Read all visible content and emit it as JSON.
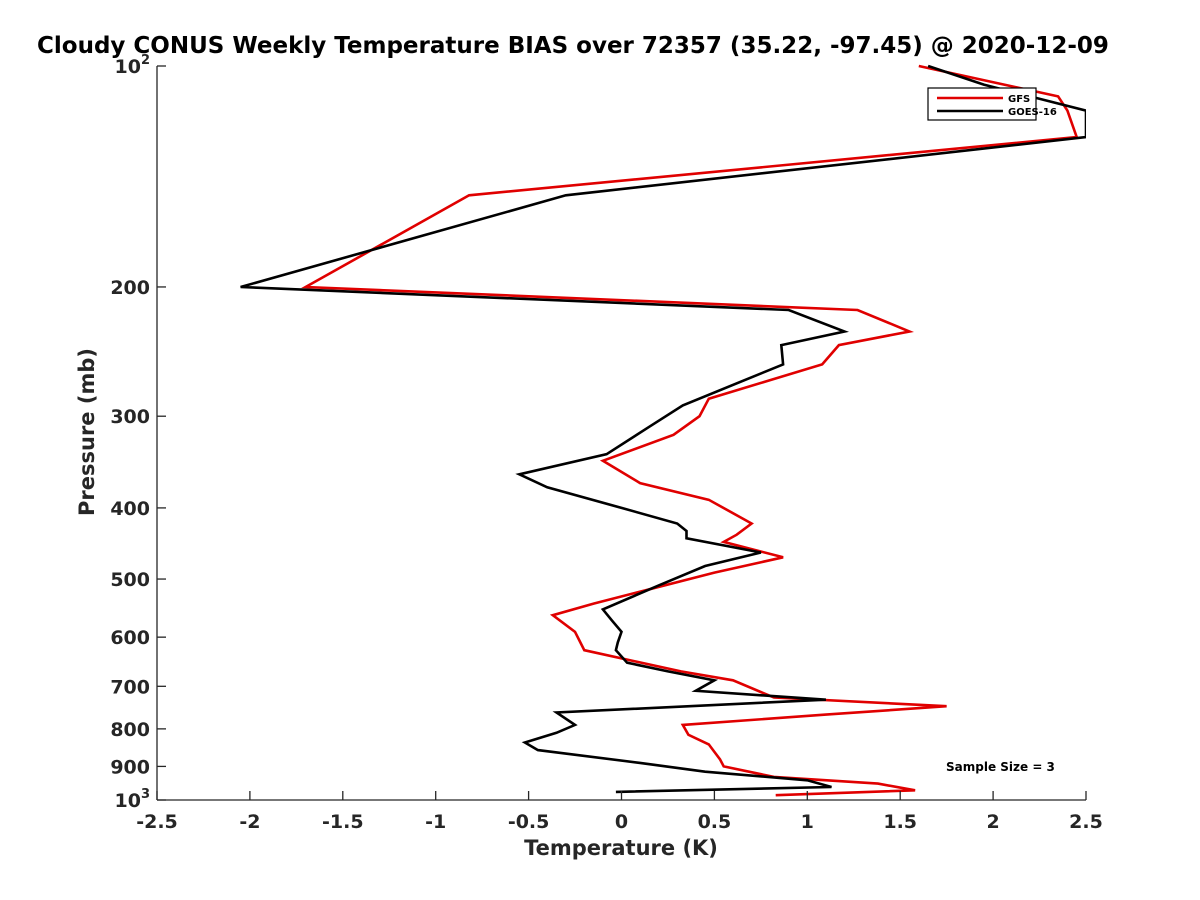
{
  "chart_data": {
    "type": "line",
    "title": "Cloudy CONUS Weekly Temperature BIAS over 72357 (35.22, -97.45) @ 2020-12-09",
    "xlabel": "Temperature (K)",
    "ylabel": "Pressure (mb)",
    "xlim": [
      -2.5,
      2.5
    ],
    "ylim": [
      100,
      1000
    ],
    "y_scale": "log",
    "y_reversed": true,
    "x_ticks": [
      "-2.5",
      "-2",
      "-1.5",
      "-1",
      "-0.5",
      "0",
      "0.5",
      "1",
      "1.5",
      "2",
      "2.5"
    ],
    "y_ticks": [
      {
        "value": 100,
        "base": "10",
        "exp": "2"
      },
      {
        "value": 200,
        "label": "200"
      },
      {
        "value": 300,
        "label": "300"
      },
      {
        "value": 400,
        "label": "400"
      },
      {
        "value": 500,
        "label": "500"
      },
      {
        "value": 600,
        "label": "600"
      },
      {
        "value": 700,
        "label": "700"
      },
      {
        "value": 800,
        "label": "800"
      },
      {
        "value": 900,
        "label": "900"
      },
      {
        "value": 1000,
        "base": "10",
        "exp": "3"
      }
    ],
    "grid": false,
    "legend": "top-right",
    "annotation": "Sample Size = 3",
    "series": [
      {
        "name": "GFS",
        "color": "#e00000",
        "points": [
          [
            1.6,
            100
          ],
          [
            2.35,
            110
          ],
          [
            2.4,
            115
          ],
          [
            2.45,
            125
          ],
          [
            -0.82,
            150
          ],
          [
            -1.7,
            200
          ],
          [
            1.27,
            215
          ],
          [
            1.55,
            230
          ],
          [
            1.17,
            240
          ],
          [
            1.08,
            255
          ],
          [
            0.47,
            284
          ],
          [
            0.42,
            300
          ],
          [
            0.28,
            318
          ],
          [
            -0.1,
            345
          ],
          [
            0.1,
            370
          ],
          [
            0.47,
            390
          ],
          [
            0.7,
            420
          ],
          [
            0.62,
            435
          ],
          [
            0.55,
            445
          ],
          [
            0.87,
            467
          ],
          [
            0.5,
            490
          ],
          [
            -0.15,
            540
          ],
          [
            -0.37,
            560
          ],
          [
            -0.25,
            590
          ],
          [
            -0.2,
            625
          ],
          [
            0.32,
            668
          ],
          [
            0.6,
            687
          ],
          [
            0.82,
            725
          ],
          [
            1.75,
            745
          ],
          [
            1.1,
            765
          ],
          [
            0.33,
            790
          ],
          [
            0.36,
            815
          ],
          [
            0.47,
            840
          ],
          [
            0.5,
            860
          ],
          [
            0.53,
            880
          ],
          [
            0.55,
            900
          ],
          [
            0.82,
            930
          ],
          [
            1.38,
            950
          ],
          [
            1.58,
            970
          ],
          [
            0.83,
            985
          ]
        ]
      },
      {
        "name": "GOES-16",
        "color": "#000000",
        "points": [
          [
            1.65,
            100
          ],
          [
            1.95,
            106
          ],
          [
            2.5,
            115
          ],
          [
            2.5,
            125
          ],
          [
            -0.3,
            150
          ],
          [
            -2.05,
            200
          ],
          [
            0.9,
            215
          ],
          [
            1.2,
            230
          ],
          [
            0.86,
            240
          ],
          [
            0.87,
            255
          ],
          [
            0.33,
            290
          ],
          [
            0.15,
            310
          ],
          [
            -0.08,
            338
          ],
          [
            -0.55,
            360
          ],
          [
            -0.4,
            375
          ],
          [
            0.0,
            400
          ],
          [
            0.3,
            420
          ],
          [
            0.35,
            430
          ],
          [
            0.35,
            440
          ],
          [
            0.75,
            460
          ],
          [
            0.45,
            480
          ],
          [
            0.2,
            510
          ],
          [
            -0.1,
            550
          ],
          [
            -0.05,
            570
          ],
          [
            0.0,
            590
          ],
          [
            -0.02,
            610
          ],
          [
            -0.03,
            625
          ],
          [
            0.03,
            650
          ],
          [
            0.25,
            668
          ],
          [
            0.5,
            687
          ],
          [
            0.4,
            710
          ],
          [
            1.1,
            730
          ],
          [
            -0.35,
            760
          ],
          [
            -0.25,
            790
          ],
          [
            -0.35,
            810
          ],
          [
            -0.52,
            835
          ],
          [
            -0.45,
            855
          ],
          [
            0.1,
            890
          ],
          [
            0.45,
            915
          ],
          [
            1.0,
            940
          ],
          [
            1.13,
            960
          ],
          [
            -0.03,
            975
          ]
        ]
      }
    ]
  }
}
